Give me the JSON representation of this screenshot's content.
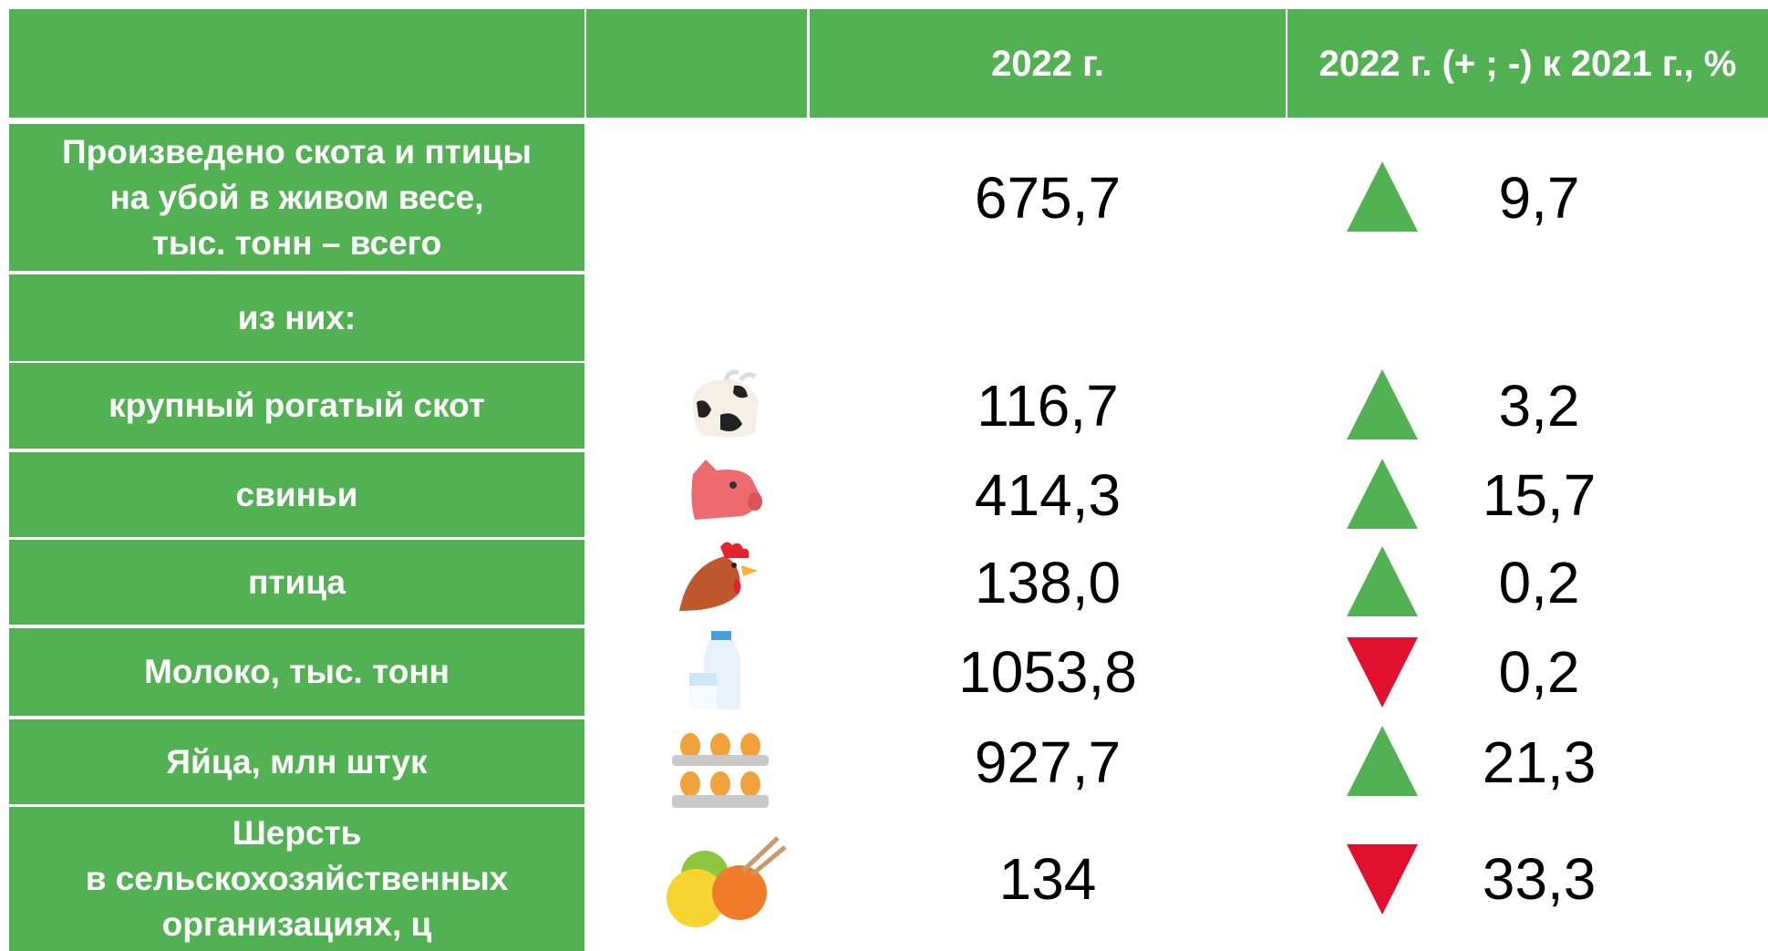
{
  "table": {
    "headers": [
      "2022 г.",
      "2022 г. (+ ; -) к 2021 г., %"
    ],
    "rows": [
      {
        "label": "Произведено скота и птицы\nна убой в живом весе,\nтыс. тонн – всего",
        "value": "675,7",
        "change": "9,7",
        "trend": "up"
      },
      {
        "label": "из них:"
      },
      {
        "label": "крупный рогатый скот",
        "value": "116,7",
        "change": "3,2",
        "trend": "up"
      },
      {
        "label": "свиньи",
        "value": "414,3",
        "change": "15,7",
        "trend": "up"
      },
      {
        "label": "птица",
        "value": "138,0",
        "change": "0,2",
        "trend": "up"
      },
      {
        "label": "Молоко, тыс. тонн",
        "value": "1053,8",
        "change": "0,2",
        "trend": "down"
      },
      {
        "label": "Яйца, млн штук",
        "value": "927,7",
        "change": "21,3",
        "trend": "up"
      },
      {
        "label": "Шерсть\nв сельскохозяйственных\nорганизациях, ц",
        "value": "134",
        "change": "33,3",
        "trend": "down"
      }
    ]
  }
}
